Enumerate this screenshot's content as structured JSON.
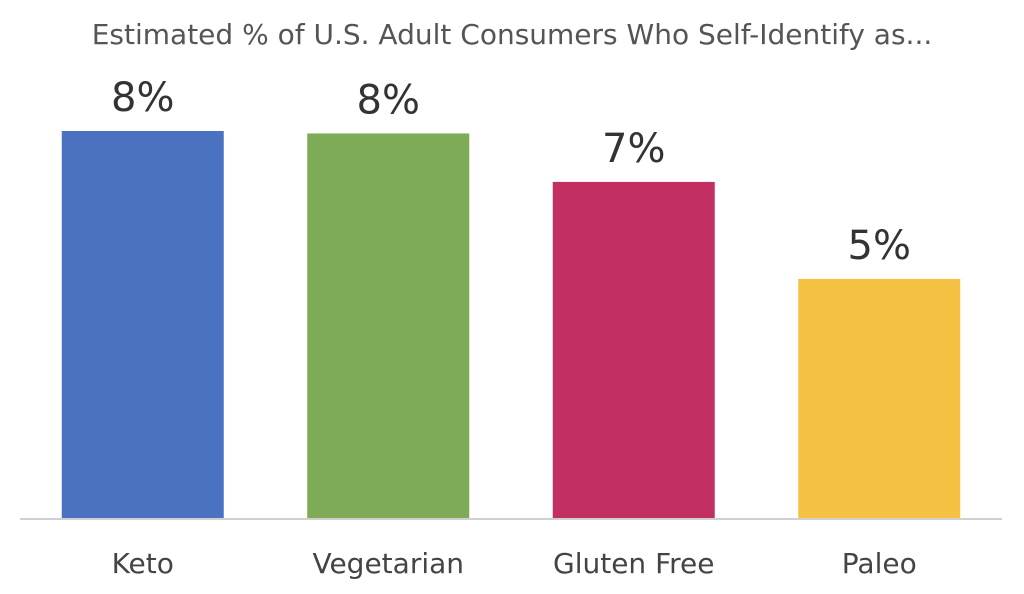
{
  "chart_data": {
    "type": "bar",
    "title": "Estimated % of U.S. Adult Consumers Who Self-Identify as...",
    "xlabel": "",
    "ylabel": "",
    "categories": [
      "Keto",
      "Vegetarian",
      "Gluten Free",
      "Paleo"
    ],
    "values": [
      8.0,
      7.95,
      6.95,
      4.95
    ],
    "data_labels": [
      "8%",
      "8%",
      "7%",
      "5%"
    ],
    "colors": [
      "#4a72c0",
      "#7eab55",
      "#c22f63",
      "#f4c142"
    ],
    "ylim": [
      0,
      8
    ],
    "grid": false,
    "legend": "none"
  }
}
